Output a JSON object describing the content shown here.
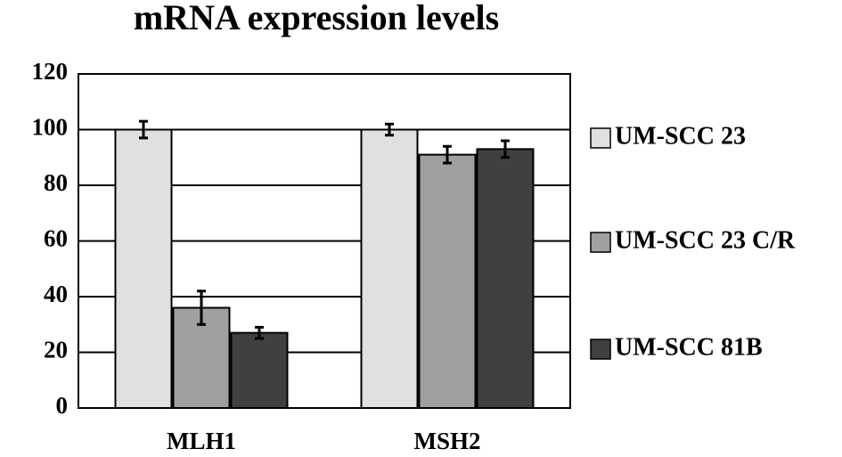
{
  "chart_data": {
    "type": "bar",
    "title": "mRNA expression levels",
    "categories": [
      "MLH1",
      "MSH2"
    ],
    "series": [
      {
        "name": "UM-SCC 23",
        "color": "#e0e0e0",
        "values": [
          100,
          100
        ],
        "errors": [
          3,
          2
        ]
      },
      {
        "name": "UM-SCC 23 C/R",
        "color": "#a0a0a0",
        "values": [
          36,
          91
        ],
        "errors": [
          6,
          3
        ]
      },
      {
        "name": "UM-SCC 81B",
        "color": "#404040",
        "values": [
          27,
          93
        ],
        "errors": [
          2,
          3
        ]
      }
    ],
    "ylim": [
      0,
      120
    ],
    "yticks": [
      0,
      20,
      40,
      60,
      80,
      100,
      120
    ],
    "grid": true,
    "legend": "right"
  }
}
